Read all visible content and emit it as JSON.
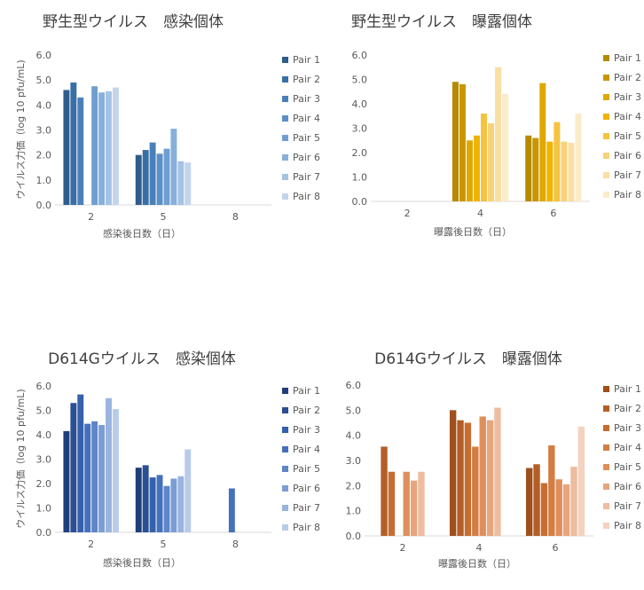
{
  "legend_labels": [
    "Pair 1",
    "Pair 2",
    "Pair 3",
    "Pair 4",
    "Pair 5",
    "Pair 6",
    "Pair 7",
    "Pair 8"
  ],
  "chart_data": [
    {
      "type": "bar",
      "title": "野生型ウイルス　感染個体",
      "xlabel": "感染後日数（日）",
      "ylabel": "ウイルス力価（log 10 pfu/mL)",
      "categories": [
        "2",
        "5",
        "8"
      ],
      "ylim": [
        0,
        6
      ],
      "yticks": [
        "0.0",
        "1.0",
        "2.0",
        "3.0",
        "4.0",
        "5.0",
        "6.0"
      ],
      "grid": false,
      "legend": "right",
      "colors": [
        "#2e5d8c",
        "#3a6fa6",
        "#4a80b8",
        "#5b90c6",
        "#6f9fd0",
        "#86b0da",
        "#a4c3e4",
        "#c2d5ec"
      ],
      "series": [
        {
          "name": "Pair 1",
          "values": [
            4.6,
            2.0,
            null
          ]
        },
        {
          "name": "Pair 2",
          "values": [
            4.9,
            2.2,
            null
          ]
        },
        {
          "name": "Pair 3",
          "values": [
            4.3,
            2.5,
            null
          ]
        },
        {
          "name": "Pair 4",
          "values": [
            null,
            2.05,
            null
          ]
        },
        {
          "name": "Pair 5",
          "values": [
            4.75,
            2.25,
            null
          ]
        },
        {
          "name": "Pair 6",
          "values": [
            4.5,
            3.05,
            null
          ]
        },
        {
          "name": "Pair 7",
          "values": [
            4.55,
            1.75,
            null
          ]
        },
        {
          "name": "Pair 8",
          "values": [
            4.7,
            1.7,
            null
          ]
        }
      ]
    },
    {
      "type": "bar",
      "title": "野生型ウイルス　曝露個体",
      "xlabel": "曝露後日数（日）",
      "ylabel": "",
      "categories": [
        "2",
        "4",
        "6"
      ],
      "ylim": [
        0,
        6
      ],
      "yticks": [
        "0.0",
        "1.0",
        "2.0",
        "3.0",
        "4.0",
        "5.0",
        "6.0"
      ],
      "grid": false,
      "legend": "right",
      "colors": [
        "#b58a00",
        "#c99600",
        "#dfa800",
        "#f0b400",
        "#f4c340",
        "#f7d27a",
        "#fadfa4",
        "#fcebc8"
      ],
      "series": [
        {
          "name": "Pair 1",
          "values": [
            null,
            4.9,
            2.7
          ]
        },
        {
          "name": "Pair 2",
          "values": [
            null,
            4.8,
            2.6
          ]
        },
        {
          "name": "Pair 3",
          "values": [
            null,
            2.5,
            4.85
          ]
        },
        {
          "name": "Pair 4",
          "values": [
            null,
            2.7,
            2.45
          ]
        },
        {
          "name": "Pair 5",
          "values": [
            null,
            3.6,
            3.25
          ]
        },
        {
          "name": "Pair 6",
          "values": [
            null,
            3.2,
            2.45
          ]
        },
        {
          "name": "Pair 7",
          "values": [
            null,
            5.5,
            2.4
          ]
        },
        {
          "name": "Pair 8",
          "values": [
            null,
            4.4,
            3.6
          ]
        }
      ]
    },
    {
      "type": "bar",
      "title": "D614Gウイルス　感染個体",
      "xlabel": "感染後日数（日）",
      "ylabel": "ウイルス力価（log 10 pfu/mL)",
      "categories": [
        "2",
        "5",
        "8"
      ],
      "ylim": [
        0,
        6
      ],
      "yticks": [
        "0.0",
        "1.0",
        "2.0",
        "3.0",
        "4.0",
        "5.0",
        "6.0"
      ],
      "grid": false,
      "legend": "right",
      "colors": [
        "#1f3f7a",
        "#2a4f92",
        "#3560aa",
        "#4570bc",
        "#5e86c8",
        "#7b9dd4",
        "#9ab4e0",
        "#b9cbea"
      ],
      "series": [
        {
          "name": "Pair 1",
          "values": [
            4.15,
            2.65,
            null
          ]
        },
        {
          "name": "Pair 2",
          "values": [
            5.3,
            2.75,
            null
          ]
        },
        {
          "name": "Pair 3",
          "values": [
            5.65,
            2.25,
            null
          ]
        },
        {
          "name": "Pair 4",
          "values": [
            4.45,
            2.35,
            1.8
          ]
        },
        {
          "name": "Pair 5",
          "values": [
            4.55,
            1.9,
            null
          ]
        },
        {
          "name": "Pair 6",
          "values": [
            4.4,
            2.2,
            null
          ]
        },
        {
          "name": "Pair 7",
          "values": [
            5.5,
            2.3,
            null
          ]
        },
        {
          "name": "Pair 8",
          "values": [
            5.05,
            3.4,
            null
          ]
        }
      ]
    },
    {
      "type": "bar",
      "title": "D614Gウイルス　曝露個体",
      "xlabel": "曝露後日数（日）",
      "ylabel": "",
      "categories": [
        "2",
        "4",
        "6"
      ],
      "ylim": [
        0,
        6
      ],
      "yticks": [
        "0.0",
        "1.0",
        "2.0",
        "3.0",
        "4.0",
        "5.0",
        "6.0"
      ],
      "grid": false,
      "legend": "right",
      "colors": [
        "#9e4f1c",
        "#b35e26",
        "#c66d32",
        "#d47d43",
        "#de8f5c",
        "#e7a57c",
        "#eebc9e",
        "#f4d2bf"
      ],
      "series": [
        {
          "name": "Pair 1",
          "values": [
            null,
            5.0,
            2.7
          ]
        },
        {
          "name": "Pair 2",
          "values": [
            3.55,
            4.6,
            2.85
          ]
        },
        {
          "name": "Pair 3",
          "values": [
            2.55,
            4.5,
            2.1
          ]
        },
        {
          "name": "Pair 4",
          "values": [
            null,
            3.55,
            3.6
          ]
        },
        {
          "name": "Pair 5",
          "values": [
            2.55,
            4.75,
            2.25
          ]
        },
        {
          "name": "Pair 6",
          "values": [
            2.2,
            4.6,
            2.05
          ]
        },
        {
          "name": "Pair 7",
          "values": [
            2.55,
            5.1,
            2.75
          ]
        },
        {
          "name": "Pair 8",
          "values": [
            null,
            null,
            4.35
          ]
        }
      ]
    }
  ]
}
